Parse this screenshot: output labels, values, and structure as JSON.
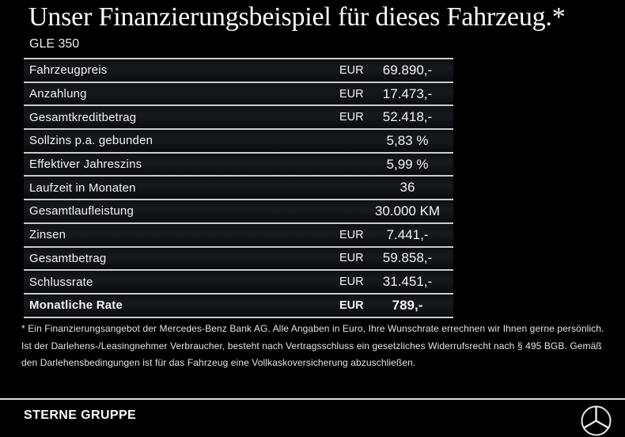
{
  "header": {
    "title": "Unser Finanzierungsbeispiel für dieses Fahrzeug.*",
    "model": "GLE 350"
  },
  "table": {
    "rows": [
      {
        "label": "Fahrzeugpreis",
        "currency": "EUR",
        "value": "69.890,-",
        "bold": false
      },
      {
        "label": "Anzahlung",
        "currency": "EUR",
        "value": "17.473,-",
        "bold": false
      },
      {
        "label": "Gesamtkreditbetrag",
        "currency": "EUR",
        "value": "52.418,-",
        "bold": false
      },
      {
        "label": "Sollzins p.a. gebunden",
        "currency": "",
        "value": "5,83 %",
        "bold": false
      },
      {
        "label": "Effektiver Jahreszins",
        "currency": "",
        "value": "5,99 %",
        "bold": false
      },
      {
        "label": "Laufzeit in Monaten",
        "currency": "",
        "value": "36",
        "bold": false
      },
      {
        "label": "Gesamtlaufleistung",
        "currency": "",
        "value": "30.000 KM",
        "bold": false
      },
      {
        "label": "Zinsen",
        "currency": "EUR",
        "value": "7.441,-",
        "bold": false
      },
      {
        "label": "Gesamtbetrag",
        "currency": "EUR",
        "value": "59.858,-",
        "bold": false
      },
      {
        "label": "Schlussrate",
        "currency": "EUR",
        "value": "31.451,-",
        "bold": false
      },
      {
        "label": "Monatliche Rate",
        "currency": "EUR",
        "value": "789,-",
        "bold": true
      }
    ]
  },
  "footnote": "* Ein Finanzierungsangebot der Mercedes-Benz Bank AG. Alle Angaben in Euro, Ihre Wunschrate errechnen wir Ihnen gerne persönlich. Ist der Darlehens-/Leasingnehmer Verbraucher, besteht nach Vertragsschluss ein gesetzliches Widerrufsrecht nach § 495 BGB. Gemäß den Darlehensbedingungen ist für das Fahrzeug eine Vollkaskoversicherung abzuschließen.",
  "footer": {
    "dealer_name": "STERNE GRUPPE",
    "logo": "mercedes-benz-star-icon"
  },
  "colors": {
    "background": "#000000",
    "divider": "#c9ccd1",
    "text": "#f0f0f0",
    "footer_rule": "#dcdcdc"
  }
}
